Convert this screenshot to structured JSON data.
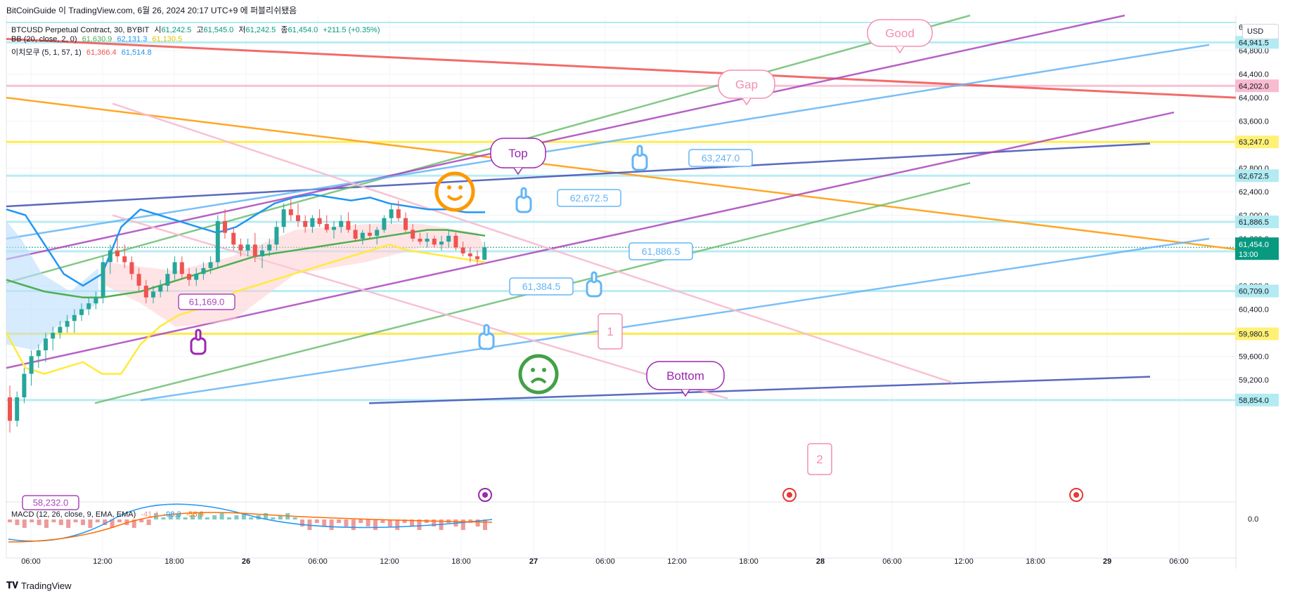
{
  "header": {
    "title_line": "BitCoinGuide 이 TradingView.com, 6월 26, 2024 20:17 UTC+9 에 퍼블리쉬됐음"
  },
  "legend": {
    "symbol": "BTCUSD Perpetual Contract, 30, BYBIT",
    "ohlc": [
      {
        "label": "시",
        "value": "61,242.5"
      },
      {
        "label": "고",
        "value": "61,545.0"
      },
      {
        "label": "저",
        "value": "61,242.5"
      },
      {
        "label": "종",
        "value": "61,454.0"
      }
    ],
    "change": "+211.5 (+0.35%)",
    "bb_label": "BB (20, close, 2, 0)",
    "bb_values": [
      "61,630.9",
      "62,131.3",
      "61,130.5"
    ],
    "ichimoku_label": "이치모쿠 (5, 1, 57, 1)",
    "ichimoku_values": [
      "61,366.4",
      "61,514.8"
    ],
    "macd_label": "MACD (12, 26, close, 9, EMA, EMA)",
    "macd_values": [
      "-41.4",
      "-98.3",
      "-56.9"
    ]
  },
  "currency": "USD",
  "footer": {
    "brand": "TradingView"
  },
  "colors": {
    "up": "#26a69a",
    "down": "#ef5350",
    "bb_mid": "#4caf50",
    "bb_upper": "#2196f3",
    "bb_lower": "#ffeb3b",
    "accent_purple": "#9c27b0",
    "accent_blue": "#5b9cf6",
    "orange": "#ff9800"
  },
  "chart_data": {
    "type": "line",
    "instrument": "BTCUSD",
    "timeframe": "30",
    "x_ticks": [
      "06:00",
      "12:00",
      "18:00",
      "26",
      "06:00",
      "12:00",
      "18:00",
      "27",
      "06:00",
      "12:00",
      "18:00",
      "28",
      "06:00",
      "12:00",
      "18:00",
      "29",
      "06:00"
    ],
    "y_ticks": [
      "65,200.0",
      "64,800.0",
      "64,400.0",
      "64,000.0",
      "63,600.0",
      "63,200.0",
      "62,800.0",
      "62,400.0",
      "62,000.0",
      "61,600.0",
      "60,800.0",
      "60,400.0",
      "60,000.0",
      "59,600.0",
      "59,200.0"
    ],
    "ylim": [
      58350,
      65400
    ],
    "price_labels": [
      {
        "value": "64,941.5",
        "price": 64941.5,
        "color": "#b2ebf2"
      },
      {
        "value": "64,202.0",
        "price": 64202.0,
        "color": "#f8bbd0"
      },
      {
        "value": "63,247.0",
        "price": 63247.0,
        "color": "#fff176"
      },
      {
        "value": "62,672.5",
        "price": 62672.5,
        "color": "#b2ebf2"
      },
      {
        "value": "61,886.5",
        "price": 61886.5,
        "color": "#b2ebf2"
      },
      {
        "value": "61,384.5",
        "price": 61384.5,
        "color": "#b2ebf2"
      },
      {
        "value": "60,709.0",
        "price": 60709.0,
        "color": "#b2ebf2"
      },
      {
        "value": "59,980.5",
        "price": 59980.5,
        "color": "#fff176"
      },
      {
        "value": "58,854.0",
        "price": 58854.0,
        "color": "#b2ebf2"
      }
    ],
    "current_price": {
      "value": "61,454.0",
      "countdown": "13:00"
    },
    "macd_axis_label": "0.0",
    "callouts": [
      {
        "text": "Good"
      },
      {
        "text": "Gap"
      },
      {
        "text": "Top"
      },
      {
        "text": "Bottom"
      },
      {
        "text": "63,247.0"
      },
      {
        "text": "62,672.5"
      },
      {
        "text": "61,886.5"
      },
      {
        "text": "61,384.5"
      },
      {
        "text": "61,169.0"
      },
      {
        "text": "58,232.0"
      },
      {
        "text": "1"
      },
      {
        "text": "2"
      }
    ],
    "candles": [
      [
        58900,
        59100,
        58300,
        58500
      ],
      [
        58500,
        59000,
        58400,
        58900
      ],
      [
        58900,
        59400,
        58800,
        59300
      ],
      [
        59300,
        59700,
        59100,
        59600
      ],
      [
        59600,
        59800,
        59400,
        59700
      ],
      [
        59700,
        60000,
        59500,
        59900
      ],
      [
        59900,
        60100,
        59700,
        60000
      ],
      [
        60000,
        60200,
        59900,
        60100
      ],
      [
        60100,
        60300,
        60000,
        60200
      ],
      [
        60200,
        60400,
        60000,
        60300
      ],
      [
        60300,
        60500,
        60200,
        60400
      ],
      [
        60400,
        60600,
        60300,
        60500
      ],
      [
        60500,
        60700,
        60400,
        60600
      ],
      [
        60600,
        61300,
        60500,
        61200
      ],
      [
        61200,
        61500,
        61000,
        61400
      ],
      [
        61400,
        61600,
        61200,
        61300
      ],
      [
        61300,
        61500,
        61100,
        61200
      ],
      [
        61200,
        61300,
        60900,
        61000
      ],
      [
        61000,
        61100,
        60700,
        60800
      ],
      [
        60800,
        60900,
        60500,
        60600
      ],
      [
        60600,
        60800,
        60500,
        60700
      ],
      [
        60700,
        60900,
        60600,
        60800
      ],
      [
        60800,
        61100,
        60700,
        61000
      ],
      [
        61000,
        61300,
        60900,
        61200
      ],
      [
        61200,
        61300,
        60900,
        61000
      ],
      [
        61000,
        61100,
        60800,
        60900
      ],
      [
        60900,
        61100,
        60800,
        61000
      ],
      [
        61000,
        61200,
        60900,
        61100
      ],
      [
        61100,
        61300,
        61000,
        61200
      ],
      [
        61200,
        62000,
        61100,
        61900
      ],
      [
        61900,
        62100,
        61600,
        61700
      ],
      [
        61700,
        61800,
        61400,
        61500
      ],
      [
        61500,
        61600,
        61300,
        61400
      ],
      [
        61400,
        61600,
        61300,
        61500
      ],
      [
        61500,
        61700,
        61200,
        61300
      ],
      [
        61300,
        61500,
        61100,
        61400
      ],
      [
        61400,
        61600,
        61300,
        61500
      ],
      [
        61500,
        61900,
        61400,
        61800
      ],
      [
        61800,
        62200,
        61700,
        62100
      ],
      [
        62100,
        62300,
        61900,
        62000
      ],
      [
        62000,
        62200,
        61800,
        61900
      ],
      [
        61900,
        62000,
        61700,
        61800
      ],
      [
        61800,
        62000,
        61700,
        61950
      ],
      [
        61950,
        62100,
        61800,
        61850
      ],
      [
        61850,
        62000,
        61700,
        61750
      ],
      [
        61750,
        61900,
        61600,
        61800
      ],
      [
        61800,
        62000,
        61700,
        61900
      ],
      [
        61900,
        62050,
        61700,
        61750
      ],
      [
        61750,
        61850,
        61550,
        61600
      ],
      [
        61600,
        61750,
        61500,
        61700
      ],
      [
        61700,
        61850,
        61600,
        61650
      ],
      [
        61650,
        61800,
        61500,
        61750
      ],
      [
        61750,
        62000,
        61700,
        61950
      ],
      [
        61950,
        62200,
        61850,
        62100
      ],
      [
        62100,
        62250,
        61900,
        61950
      ],
      [
        61950,
        62050,
        61700,
        61750
      ],
      [
        61750,
        61850,
        61550,
        61600
      ],
      [
        61600,
        61700,
        61500,
        61550
      ],
      [
        61550,
        61700,
        61450,
        61600
      ],
      [
        61600,
        61650,
        61450,
        61500
      ],
      [
        61500,
        61650,
        61400,
        61550
      ],
      [
        61550,
        61750,
        61450,
        61650
      ],
      [
        61650,
        61700,
        61400,
        61450
      ],
      [
        61450,
        61550,
        61300,
        61350
      ],
      [
        61350,
        61450,
        61200,
        61300
      ],
      [
        61300,
        61400,
        61150,
        61250
      ],
      [
        61242.5,
        61545,
        61242.5,
        61454
      ]
    ],
    "series": [
      {
        "name": "BB (20, close, 2, 0)",
        "role": "basis",
        "color": "#4caf50",
        "values": [
          60900,
          60800,
          60700,
          60650,
          60600,
          60600,
          60650,
          60700,
          60800,
          60900,
          61000,
          61100,
          61200,
          61300,
          61350,
          61400,
          61450,
          61500,
          61550,
          61600,
          61650,
          61700,
          61750,
          61750,
          61700,
          61650
        ]
      },
      {
        "name": "BB (20, close, 2, 0)",
        "role": "upper",
        "color": "#2196f3",
        "values": [
          62100,
          62000,
          61500,
          61000,
          60800,
          61000,
          61800,
          62100,
          62000,
          61900,
          61800,
          61700,
          61800,
          62000,
          62200,
          62300,
          62350,
          62300,
          62250,
          62300,
          62200,
          62150,
          62100,
          62100,
          62050,
          62050
        ]
      },
      {
        "name": "BB (20, close, 2, 0)",
        "role": "lower",
        "color": "#ffeb3b",
        "values": [
          60000,
          59400,
          59300,
          59400,
          59500,
          59300,
          59300,
          59800,
          60100,
          60300,
          60400,
          60500,
          60700,
          60800,
          60900,
          61000,
          61100,
          61200,
          61300,
          61400,
          61500,
          61400,
          61350,
          61300,
          61250,
          61200
        ]
      }
    ]
  }
}
